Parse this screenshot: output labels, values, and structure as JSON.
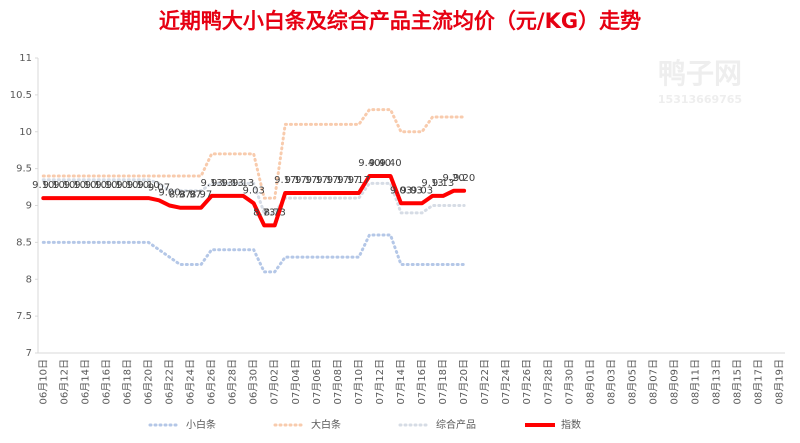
{
  "chart_data": {
    "type": "line",
    "title": "近期鸭大小白条及综合产品主流均价（元/KG）走势",
    "watermark": [
      "鸭子网",
      "15313669765"
    ],
    "categories": [
      "06月10日",
      null,
      "06月12日",
      null,
      "06月14日",
      null,
      "06月16日",
      null,
      "06月18日",
      null,
      "06月20日",
      null,
      "06月22日",
      null,
      "06月24日",
      null,
      "06月26日",
      null,
      "06月28日",
      null,
      "06月30日",
      null,
      "07月02日",
      null,
      "07月04日",
      null,
      "07月06日",
      null,
      "07月08日",
      null,
      "07月10日",
      null,
      "07月12日",
      null,
      "07月14日",
      null,
      "07月16日",
      null,
      "07月18日",
      null,
      "07月20日",
      null,
      "07月22日",
      null,
      "07月24日",
      null,
      "07月26日",
      null,
      "07月28日",
      null,
      "07月30日",
      null,
      "08月01日",
      null,
      "08月03日",
      null,
      "08月05日",
      null,
      "08月07日",
      null,
      "08月09日",
      null,
      "08月11日",
      null,
      "08月13日",
      null,
      "08月15日",
      null,
      "08月17日",
      null,
      "08月19日"
    ],
    "ylim": [
      7,
      11
    ],
    "yticks": [
      7,
      7.5,
      8,
      8.5,
      9,
      9.5,
      10,
      10.5,
      11
    ],
    "grid": false,
    "series": [
      {
        "name": "小白条",
        "color": "#b4c7e7",
        "style": "dotted",
        "values": [
          8.5,
          8.5,
          8.5,
          8.5,
          8.5,
          8.5,
          8.5,
          8.5,
          8.5,
          8.5,
          8.5,
          8.4,
          8.3,
          8.2,
          8.2,
          8.2,
          8.4,
          8.4,
          8.4,
          8.4,
          8.4,
          8.1,
          8.1,
          8.3,
          8.3,
          8.3,
          8.3,
          8.3,
          8.3,
          8.3,
          8.3,
          8.6,
          8.6,
          8.6,
          8.2,
          8.2,
          8.2,
          8.2,
          8.2,
          8.2,
          8.2,
          null,
          null,
          null,
          null,
          null,
          null,
          null,
          null,
          null,
          null,
          null,
          null,
          null,
          null,
          null,
          null,
          null,
          null,
          null,
          null,
          null,
          null,
          null,
          null,
          null,
          null,
          null,
          null,
          null,
          null
        ]
      },
      {
        "name": "大白条",
        "color": "#f8cbad",
        "style": "dotted",
        "values": [
          9.4,
          9.4,
          9.4,
          9.4,
          9.4,
          9.4,
          9.4,
          9.4,
          9.4,
          9.4,
          9.4,
          9.4,
          9.4,
          9.4,
          9.4,
          9.4,
          9.7,
          9.7,
          9.7,
          9.7,
          9.7,
          9.1,
          9.1,
          10.1,
          10.1,
          10.1,
          10.1,
          10.1,
          10.1,
          10.1,
          10.1,
          10.3,
          10.3,
          10.3,
          10,
          10,
          10,
          10.2,
          10.2,
          10.2,
          10.2,
          null,
          null,
          null,
          null,
          null,
          null,
          null,
          null,
          null,
          null,
          null,
          null,
          null,
          null,
          null,
          null,
          null,
          null,
          null,
          null,
          null,
          null,
          null,
          null,
          null,
          null,
          null,
          null,
          null,
          null
        ]
      },
      {
        "name": "综合产品",
        "color": "#d6dce5",
        "style": "dotted",
        "values": [
          9.35,
          9.35,
          9.35,
          9.35,
          9.35,
          9.35,
          9.35,
          9.35,
          9.35,
          9.35,
          9.35,
          9.3,
          9.2,
          9.2,
          9.2,
          9.2,
          9.3,
          9.3,
          9.3,
          9.3,
          9.3,
          8.9,
          8.9,
          9.1,
          9.1,
          9.1,
          9.1,
          9.1,
          9.1,
          9.1,
          9.1,
          9.3,
          9.3,
          9.3,
          8.9,
          8.9,
          8.9,
          9,
          9,
          9,
          9,
          null,
          null,
          null,
          null,
          null,
          null,
          null,
          null,
          null,
          null,
          null,
          null,
          null,
          null,
          null,
          null,
          null,
          null,
          null,
          null,
          null,
          null,
          null,
          null,
          null,
          null,
          null,
          null,
          null,
          null
        ]
      },
      {
        "name": "指数",
        "color": "#ff0000",
        "style": "solid",
        "values": [
          9.1,
          9.1,
          9.1,
          9.1,
          9.1,
          9.1,
          9.1,
          9.1,
          9.1,
          9.1,
          9.1,
          9.07,
          9,
          8.97,
          8.97,
          8.97,
          9.13,
          9.13,
          9.13,
          9.13,
          9.03,
          8.73,
          8.73,
          9.17,
          9.17,
          9.17,
          9.17,
          9.17,
          9.17,
          9.17,
          9.17,
          9.4,
          9.4,
          9.4,
          9.03,
          9.03,
          9.03,
          9.13,
          9.13,
          9.2,
          9.2,
          null,
          null,
          null,
          null,
          null,
          null,
          null,
          null,
          null,
          null,
          null,
          null,
          null,
          null,
          null,
          null,
          null,
          null,
          null,
          null,
          null,
          null,
          null,
          null,
          null,
          null,
          null,
          null,
          null,
          null
        ],
        "value_labels": [
          "9.10",
          "9.10",
          "9.10",
          "9.10",
          "9.10",
          "9.10",
          "9.10",
          "9.10",
          "9.10",
          "9.10",
          "9.10",
          "9.07",
          "9.00",
          "8.97",
          "8.97",
          "8.97",
          "9.13",
          "9.13",
          "9.13",
          "9.13",
          "9.03",
          "8.73",
          "8.73",
          "9.17",
          "9.17",
          "9.17",
          "9.17",
          "9.17",
          "9.17",
          "9.17",
          "9.17",
          "9.40",
          "9.40",
          "9.40",
          "9.03",
          "9.03",
          "9.03",
          "9.13",
          "9.13",
          "9.20",
          "9.20",
          null,
          null,
          null,
          null,
          null,
          null,
          null,
          null,
          null,
          null,
          null,
          null,
          null,
          null,
          null,
          null,
          null,
          null,
          null,
          null,
          null,
          null,
          null,
          null,
          null,
          null,
          null,
          null,
          null,
          null
        ]
      }
    ]
  }
}
